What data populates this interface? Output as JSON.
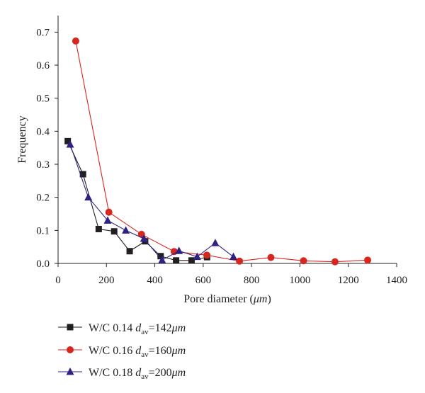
{
  "chart_data": {
    "type": "line",
    "xlabel": "Pore diameter (",
    "xlabel_unit": "μm",
    "xlabel_close": ")",
    "ylabel": "Frequency",
    "xlim": [
      0,
      1400
    ],
    "ylim": [
      0,
      0.75
    ],
    "x_ticks": [
      0,
      200,
      400,
      600,
      800,
      1000,
      1200,
      1400
    ],
    "y_ticks": [
      0.0,
      0.1,
      0.2,
      0.3,
      0.4,
      0.5,
      0.6,
      0.7
    ],
    "x_tick_labels": [
      "0",
      "200",
      "400",
      "600",
      "800",
      "1000",
      "1200",
      "1400"
    ],
    "y_tick_labels": [
      "0.0",
      "0.1",
      "0.2",
      "0.3",
      "0.4",
      "0.5",
      "0.6",
      "0.7"
    ],
    "grid": false,
    "legend_position": "bottom",
    "series": [
      {
        "name": "W/C 0.14 d_av = 142 μm",
        "legend": {
          "prefix": "W/C 0.14 ",
          "d": "d",
          "sub": "av",
          "eq": "=142",
          "unit": "μm"
        },
        "color": "#231f20",
        "marker": "square",
        "points": [
          [
            40,
            0.37
          ],
          [
            103,
            0.27
          ],
          [
            168,
            0.104
          ],
          [
            232,
            0.097
          ],
          [
            296,
            0.037
          ],
          [
            360,
            0.067
          ],
          [
            424,
            0.022
          ],
          [
            488,
            0.009
          ],
          [
            552,
            0.009
          ],
          [
            616,
            0.019
          ]
        ]
      },
      {
        "name": "W/C 0.16 d_av = 160 μm",
        "legend": {
          "prefix": "W/C 0.16 ",
          "d": "d",
          "sub": "av",
          "eq": "=160",
          "unit": "μm"
        },
        "color": "#d7261e",
        "marker": "circle",
        "points": [
          [
            73,
            0.673
          ],
          [
            210,
            0.155
          ],
          [
            345,
            0.088
          ],
          [
            480,
            0.036
          ],
          [
            615,
            0.025
          ],
          [
            750,
            0.007
          ],
          [
            880,
            0.018
          ],
          [
            1015,
            0.008
          ],
          [
            1145,
            0.005
          ],
          [
            1280,
            0.01
          ]
        ]
      },
      {
        "name": "W/C 0.18 d_av = 200 μm",
        "legend": {
          "prefix": "W/C 0.18 ",
          "d": "d",
          "sub": "av",
          "eq": "=200",
          "unit": "μm"
        },
        "color": "#2e2383",
        "marker": "triangle",
        "points": [
          [
            50,
            0.36
          ],
          [
            125,
            0.2
          ],
          [
            205,
            0.13
          ],
          [
            280,
            0.1
          ],
          [
            355,
            0.075
          ],
          [
            430,
            0.01
          ],
          [
            500,
            0.038
          ],
          [
            575,
            0.02
          ],
          [
            650,
            0.062
          ],
          [
            725,
            0.02
          ]
        ]
      }
    ]
  }
}
